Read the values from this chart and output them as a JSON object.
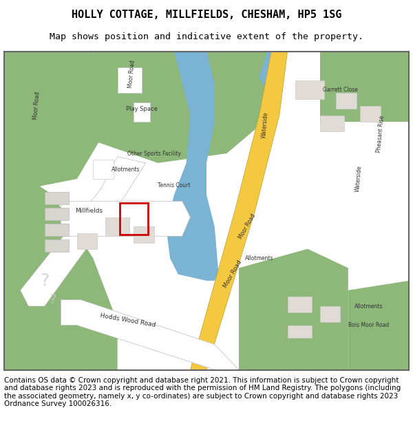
{
  "title": "HOLLY COTTAGE, MILLFIELDS, CHESHAM, HP5 1SG",
  "subtitle": "Map shows position and indicative extent of the property.",
  "footer": "Contains OS data © Crown copyright and database right 2021. This information is subject to Crown copyright and database rights 2023 and is reproduced with the permission of HM Land Registry. The polygons (including the associated geometry, namely x, y co-ordinates) are subject to Crown copyright and database rights 2023 Ordnance Survey 100026316.",
  "title_fontsize": 11,
  "subtitle_fontsize": 9.5,
  "footer_fontsize": 7.5,
  "bg_color": "#ffffff",
  "map_bg": "#f2ede8",
  "road_color": "#ffffff",
  "road_outline": "#cccccc",
  "green_color": "#8db87a",
  "water_color": "#7ab3d4",
  "highlight_road": "#f5c842",
  "plot_outline": "#cc0000",
  "gray_road": "#d4d0cb",
  "light_gray": "#e8e4de",
  "fig_width": 6.0,
  "fig_height": 6.25
}
